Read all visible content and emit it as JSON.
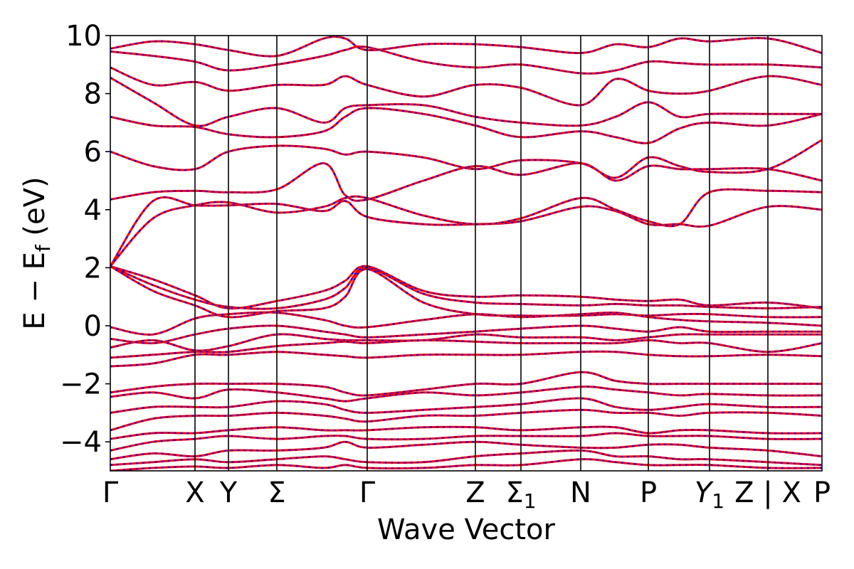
{
  "chart_data": {
    "type": "line",
    "title": "",
    "xlabel": "Wave Vector",
    "ylabel": "E − E_f (eV)",
    "ylabel_parts": {
      "main": "E − E",
      "subscript": "f",
      "suffix": " (eV)"
    },
    "ylim": [
      -5,
      10
    ],
    "yticks": [
      -4,
      -2,
      0,
      2,
      4,
      6,
      8,
      10
    ],
    "ytick_labels": [
      "−4",
      "−2",
      "0",
      "2",
      "4",
      "6",
      "8",
      "10"
    ],
    "xlim": [
      0,
      1
    ],
    "xticks": [
      {
        "pos": 0.0,
        "label": "Γ",
        "sub": ""
      },
      {
        "pos": 0.119,
        "label": "X",
        "sub": ""
      },
      {
        "pos": 0.166,
        "label": "Y",
        "sub": ""
      },
      {
        "pos": 0.234,
        "label": "Σ",
        "sub": ""
      },
      {
        "pos": 0.361,
        "label": "Γ",
        "sub": ""
      },
      {
        "pos": 0.513,
        "label": "Z",
        "sub": ""
      },
      {
        "pos": 0.577,
        "label": "Σ",
        "sub": "1"
      },
      {
        "pos": 0.661,
        "label": "N",
        "sub": ""
      },
      {
        "pos": 0.756,
        "label": "P",
        "sub": ""
      },
      {
        "pos": 0.842,
        "label": "Y",
        "sub": "1",
        "italic": true
      },
      {
        "pos": 0.924,
        "label": "Z | X",
        "sub": ""
      },
      {
        "pos": 1.0,
        "label": "P",
        "sub": ""
      }
    ],
    "grid": false,
    "legend": "none",
    "colors": {
      "band_a": "#ff0000",
      "band_b": "#0000ff",
      "vline": "#000000"
    },
    "series": [
      {
        "values": [
          2.05,
          1.6,
          1.05,
          0.6,
          0.85,
          1.2,
          1.55,
          2.05,
          1.2,
          1.0,
          1.05,
          1.0,
          0.9,
          0.85,
          0.9,
          0.7,
          0.8,
          0.6
        ]
      },
      {
        "values": [
          2.05,
          1.4,
          0.9,
          0.65,
          0.6,
          0.9,
          1.3,
          2.0,
          1.1,
          0.8,
          0.75,
          0.7,
          0.75,
          0.7,
          0.7,
          0.65,
          0.6,
          0.65
        ]
      },
      {
        "values": [
          2.05,
          1.2,
          0.7,
          0.3,
          0.5,
          0.6,
          1.0,
          1.95,
          0.8,
          0.4,
          0.35,
          0.35,
          0.4,
          0.35,
          0.4,
          0.4,
          0.3,
          0.3
        ]
      },
      {
        "values": [
          2.05,
          4.3,
          4.15,
          4.15,
          4.2,
          3.95,
          4.3,
          3.75,
          3.5,
          3.5,
          3.6,
          4.1,
          3.95,
          3.5,
          3.5,
          3.45,
          4.1,
          4.0
        ]
      },
      {
        "values": [
          2.05,
          3.7,
          4.15,
          4.25,
          3.9,
          4.1,
          4.4,
          4.4,
          3.8,
          3.5,
          3.7,
          4.4,
          4.0,
          3.6,
          3.5,
          4.6,
          4.65,
          4.6
        ]
      },
      {
        "values": [
          4.35,
          4.6,
          4.65,
          4.6,
          4.7,
          5.6,
          4.5,
          4.35,
          5.0,
          5.5,
          5.2,
          5.6,
          5.0,
          5.5,
          5.4,
          5.4,
          5.4,
          5.0
        ]
      },
      {
        "values": [
          6.0,
          5.5,
          5.4,
          6.0,
          6.2,
          6.1,
          5.9,
          6.0,
          5.8,
          5.4,
          5.7,
          5.6,
          5.1,
          5.8,
          5.5,
          5.3,
          5.4,
          6.4
        ]
      },
      {
        "values": [
          7.2,
          6.9,
          6.85,
          6.6,
          6.5,
          6.7,
          7.2,
          7.5,
          7.3,
          6.9,
          6.5,
          6.7,
          6.5,
          6.3,
          6.8,
          7.0,
          6.9,
          7.3
        ]
      },
      {
        "values": [
          8.55,
          7.7,
          6.9,
          7.2,
          7.5,
          7.0,
          7.5,
          7.6,
          7.6,
          7.2,
          7.0,
          6.9,
          7.2,
          7.7,
          7.2,
          7.3,
          7.3,
          7.3
        ]
      },
      {
        "values": [
          8.9,
          8.3,
          8.4,
          8.1,
          8.3,
          8.3,
          8.6,
          8.3,
          7.9,
          8.3,
          8.2,
          7.6,
          8.5,
          8.1,
          8.0,
          8.1,
          8.6,
          8.3
        ]
      },
      {
        "values": [
          9.45,
          9.3,
          9.1,
          8.8,
          9.0,
          9.3,
          9.5,
          9.6,
          9.1,
          8.9,
          9.0,
          8.7,
          8.8,
          9.1,
          9.05,
          9.0,
          9.0,
          8.9
        ]
      },
      {
        "values": [
          9.55,
          9.8,
          9.7,
          9.5,
          9.3,
          9.9,
          9.9,
          9.5,
          9.7,
          9.7,
          9.6,
          9.4,
          9.7,
          9.6,
          9.9,
          9.8,
          9.9,
          9.4
        ]
      },
      {
        "values": [
          -0.05,
          -0.3,
          0.25,
          0.4,
          0.45,
          0.2,
          0.0,
          -0.05,
          0.2,
          0.4,
          0.3,
          0.4,
          0.45,
          0.3,
          0.2,
          0.15,
          0.1,
          0.0
        ]
      },
      {
        "values": [
          -0.45,
          -0.6,
          -0.3,
          -0.1,
          0.0,
          -0.2,
          -0.3,
          -0.4,
          -0.3,
          -0.2,
          -0.1,
          0.0,
          -0.1,
          -0.2,
          -0.05,
          -0.2,
          -0.2,
          -0.2
        ]
      },
      {
        "values": [
          -0.75,
          -0.5,
          -0.85,
          -0.7,
          -0.3,
          -0.45,
          -0.5,
          -0.5,
          -0.5,
          -0.3,
          -0.4,
          -0.4,
          -0.5,
          -0.4,
          -0.3,
          -0.3,
          -0.3,
          -0.3
        ]
      },
      {
        "values": [
          -1.1,
          -1.0,
          -0.9,
          -0.9,
          -0.7,
          -0.6,
          -0.55,
          -0.6,
          -0.5,
          -0.55,
          -0.6,
          -0.6,
          -0.6,
          -0.5,
          -0.6,
          -0.6,
          -0.9,
          -0.6
        ]
      },
      {
        "values": [
          -1.4,
          -1.3,
          -1.0,
          -1.0,
          -0.9,
          -1.0,
          -1.05,
          -1.1,
          -1.0,
          -1.0,
          -1.0,
          -0.9,
          -0.9,
          -1.0,
          -1.05,
          -1.05,
          -1.0,
          -1.05
        ]
      },
      {
        "values": [
          -2.3,
          -2.1,
          -2.0,
          -2.0,
          -2.0,
          -2.1,
          -2.3,
          -2.4,
          -2.2,
          -2.0,
          -2.0,
          -1.6,
          -1.9,
          -2.0,
          -2.0,
          -2.0,
          -2.0,
          -2.0
        ]
      },
      {
        "values": [
          -2.45,
          -2.3,
          -2.5,
          -2.2,
          -2.3,
          -2.5,
          -2.6,
          -2.5,
          -2.3,
          -2.4,
          -2.3,
          -2.1,
          -2.2,
          -2.3,
          -2.4,
          -2.35,
          -2.4,
          -2.4
        ]
      },
      {
        "values": [
          -3.0,
          -2.8,
          -2.8,
          -2.8,
          -2.6,
          -2.7,
          -2.9,
          -3.0,
          -2.9,
          -2.8,
          -2.7,
          -2.5,
          -2.8,
          -2.9,
          -2.8,
          -2.7,
          -2.8,
          -2.8
        ]
      },
      {
        "values": [
          -3.6,
          -3.2,
          -3.1,
          -3.1,
          -3.0,
          -3.1,
          -3.2,
          -3.3,
          -3.1,
          -3.1,
          -3.0,
          -2.9,
          -3.0,
          -3.0,
          -3.1,
          -3.0,
          -3.0,
          -3.1
        ]
      },
      {
        "values": [
          -3.9,
          -3.7,
          -3.7,
          -3.6,
          -3.5,
          -3.6,
          -3.6,
          -3.6,
          -3.5,
          -3.5,
          -3.6,
          -3.5,
          -3.5,
          -3.7,
          -3.6,
          -3.6,
          -3.7,
          -3.7
        ]
      },
      {
        "values": [
          -4.3,
          -4.0,
          -3.9,
          -3.8,
          -3.9,
          -3.8,
          -3.8,
          -3.9,
          -3.9,
          -3.8,
          -3.8,
          -3.8,
          -3.7,
          -3.8,
          -3.8,
          -3.8,
          -3.9,
          -3.9
        ]
      },
      {
        "values": [
          -4.6,
          -4.4,
          -4.5,
          -4.3,
          -4.3,
          -4.2,
          -4.0,
          -4.2,
          -4.1,
          -4.0,
          -4.1,
          -4.2,
          -4.2,
          -4.1,
          -4.1,
          -4.2,
          -4.3,
          -4.5
        ]
      },
      {
        "values": [
          -4.8,
          -4.7,
          -4.6,
          -4.7,
          -4.6,
          -4.5,
          -4.6,
          -4.7,
          -4.7,
          -4.5,
          -4.4,
          -4.3,
          -4.5,
          -4.5,
          -4.6,
          -4.6,
          -4.7,
          -4.8
        ]
      },
      {
        "values": [
          -5.0,
          -4.9,
          -4.85,
          -4.9,
          -4.8,
          -4.9,
          -4.8,
          -4.9,
          -4.9,
          -4.8,
          -4.8,
          -4.6,
          -4.7,
          -4.8,
          -4.8,
          -4.8,
          -4.9,
          -4.9
        ]
      }
    ],
    "sample_x": [
      0.0,
      0.06,
      0.119,
      0.166,
      0.234,
      0.3,
      0.33,
      0.361,
      0.44,
      0.513,
      0.577,
      0.661,
      0.71,
      0.756,
      0.8,
      0.842,
      0.924,
      1.0
    ]
  }
}
